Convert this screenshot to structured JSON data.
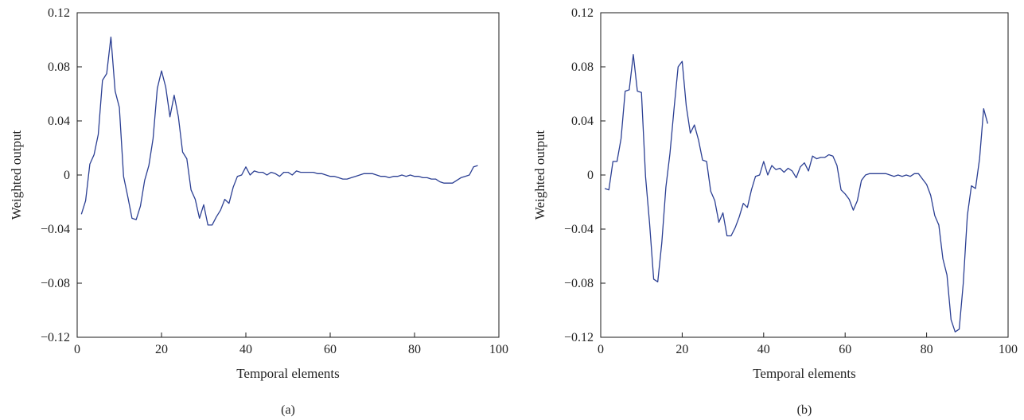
{
  "line_color": "#2b3f93",
  "chart_data": [
    {
      "type": "line",
      "caption": "(a)",
      "xlabel": "Temporal elements",
      "ylabel": "Weighted output",
      "xlim": [
        0,
        100
      ],
      "ylim": [
        -0.12,
        0.12
      ],
      "xticks": [
        0,
        20,
        40,
        60,
        80,
        100
      ],
      "yticks": [
        -0.12,
        -0.08,
        -0.04,
        0,
        0.04,
        0.08,
        0.12
      ],
      "xtick_labels": [
        "0",
        "20",
        "40",
        "60",
        "80",
        "100"
      ],
      "ytick_labels": [
        "−0.12",
        "−0.08",
        "−0.04",
        "0",
        "0.04",
        "0.08",
        "0.12"
      ],
      "grid": false,
      "series": [
        {
          "x": [
            1,
            2,
            3,
            4,
            5,
            6,
            7,
            8,
            9,
            10,
            11,
            12,
            13,
            14,
            15,
            16,
            17,
            18,
            19,
            20,
            21,
            22,
            23,
            24,
            25,
            26,
            27,
            28,
            29,
            30,
            31,
            32,
            33,
            34,
            35,
            36,
            37,
            38,
            39,
            40,
            41,
            42,
            43,
            44,
            45,
            46,
            47,
            48,
            49,
            50,
            51,
            52,
            53,
            54,
            55,
            56,
            57,
            58,
            59,
            60,
            61,
            62,
            63,
            64,
            65,
            66,
            67,
            68,
            69,
            70,
            71,
            72,
            73,
            74,
            75,
            76,
            77,
            78,
            79,
            80,
            81,
            82,
            83,
            84,
            85,
            86,
            87,
            88,
            89,
            90,
            91,
            92,
            93,
            94,
            95
          ],
          "y": [
            -0.029,
            -0.019,
            0.008,
            0.015,
            0.03,
            0.07,
            0.075,
            0.102,
            0.062,
            0.05,
            -0.001,
            -0.016,
            -0.032,
            -0.033,
            -0.023,
            -0.004,
            0.007,
            0.027,
            0.064,
            0.077,
            0.065,
            0.043,
            0.059,
            0.043,
            0.017,
            0.012,
            -0.011,
            -0.018,
            -0.032,
            -0.022,
            -0.037,
            -0.037,
            -0.031,
            -0.026,
            -0.018,
            -0.021,
            -0.009,
            -0.001,
            0.0,
            0.006,
            0.0,
            0.003,
            0.002,
            0.002,
            0.0,
            0.002,
            0.001,
            -0.001,
            0.002,
            0.002,
            0.0,
            0.003,
            0.002,
            0.002,
            0.002,
            0.002,
            0.001,
            0.001,
            0.0,
            -0.001,
            -0.001,
            -0.002,
            -0.003,
            -0.003,
            -0.002,
            -0.001,
            0.0,
            0.001,
            0.001,
            0.001,
            0.0,
            -0.001,
            -0.001,
            -0.002,
            -0.001,
            -0.001,
            0.0,
            -0.001,
            0.0,
            -0.001,
            -0.001,
            -0.002,
            -0.002,
            -0.003,
            -0.003,
            -0.005,
            -0.006,
            -0.006,
            -0.006,
            -0.004,
            -0.002,
            -0.001,
            0.0,
            0.006,
            0.007
          ]
        }
      ]
    },
    {
      "type": "line",
      "caption": "(b)",
      "xlabel": "Temporal elements",
      "ylabel": "Weighted output",
      "xlim": [
        0,
        100
      ],
      "ylim": [
        -0.12,
        0.12
      ],
      "xticks": [
        0,
        20,
        40,
        60,
        80,
        100
      ],
      "yticks": [
        -0.12,
        -0.08,
        -0.04,
        0,
        0.04,
        0.08,
        0.12
      ],
      "xtick_labels": [
        "0",
        "20",
        "40",
        "60",
        "80",
        "100"
      ],
      "ytick_labels": [
        "−0.12",
        "−0.08",
        "−0.04",
        "0",
        "0.04",
        "0.08",
        "0.12"
      ],
      "grid": false,
      "series": [
        {
          "x": [
            1,
            2,
            3,
            4,
            5,
            6,
            7,
            8,
            9,
            10,
            11,
            12,
            13,
            14,
            15,
            16,
            17,
            18,
            19,
            20,
            21,
            22,
            23,
            24,
            25,
            26,
            27,
            28,
            29,
            30,
            31,
            32,
            33,
            34,
            35,
            36,
            37,
            38,
            39,
            40,
            41,
            42,
            43,
            44,
            45,
            46,
            47,
            48,
            49,
            50,
            51,
            52,
            53,
            54,
            55,
            56,
            57,
            58,
            59,
            60,
            61,
            62,
            63,
            64,
            65,
            66,
            67,
            68,
            69,
            70,
            71,
            72,
            73,
            74,
            75,
            76,
            77,
            78,
            79,
            80,
            81,
            82,
            83,
            84,
            85,
            86,
            87,
            88,
            89,
            90,
            91,
            92,
            93,
            94,
            95
          ],
          "y": [
            -0.01,
            -0.011,
            0.01,
            0.01,
            0.027,
            0.062,
            0.063,
            0.089,
            0.062,
            0.061,
            -0.001,
            -0.036,
            -0.077,
            -0.079,
            -0.05,
            -0.009,
            0.016,
            0.049,
            0.08,
            0.084,
            0.051,
            0.031,
            0.037,
            0.026,
            0.011,
            0.01,
            -0.012,
            -0.019,
            -0.035,
            -0.028,
            -0.045,
            -0.045,
            -0.039,
            -0.031,
            -0.021,
            -0.024,
            -0.011,
            -0.001,
            0.0,
            0.01,
            0.0,
            0.007,
            0.004,
            0.005,
            0.002,
            0.005,
            0.003,
            -0.002,
            0.006,
            0.009,
            0.003,
            0.014,
            0.012,
            0.013,
            0.013,
            0.015,
            0.014,
            0.007,
            -0.011,
            -0.014,
            -0.018,
            -0.026,
            -0.019,
            -0.004,
            0.0,
            0.001,
            0.001,
            0.001,
            0.001,
            0.001,
            0.0,
            -0.001,
            0.0,
            -0.001,
            0.0,
            -0.001,
            0.001,
            0.001,
            -0.003,
            -0.007,
            -0.015,
            -0.03,
            -0.037,
            -0.062,
            -0.074,
            -0.107,
            -0.116,
            -0.114,
            -0.08,
            -0.03,
            -0.008,
            -0.01,
            0.012,
            0.049,
            0.038
          ]
        }
      ]
    }
  ]
}
